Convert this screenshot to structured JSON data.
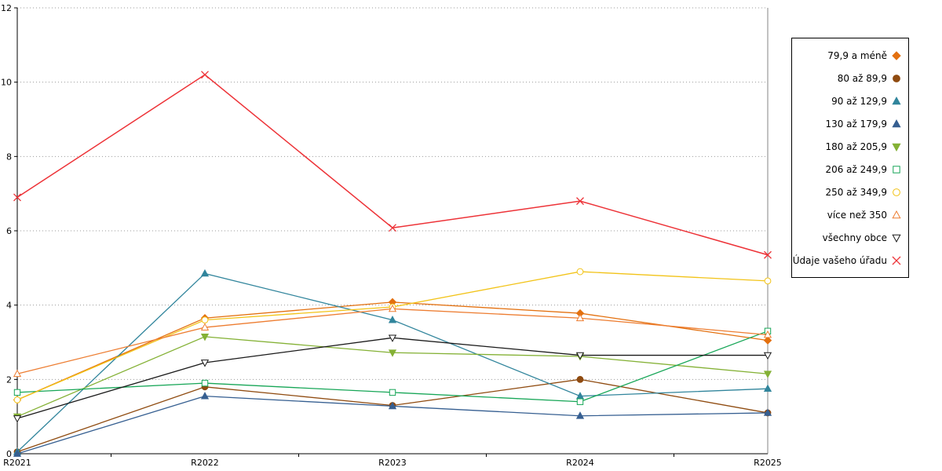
{
  "chart_data": {
    "type": "line",
    "x": [
      "R2021",
      "R2022",
      "R2023",
      "R2024",
      "R2025"
    ],
    "ylim": [
      0,
      12
    ],
    "ytick_step": 2,
    "yticks": [
      0,
      2,
      4,
      6,
      8,
      10,
      12
    ],
    "grid": "horizontal-dotted",
    "legend_position": "top-right",
    "title": "",
    "xlabel": "",
    "ylabel": "",
    "series": [
      {
        "name": "79,9 a méně",
        "marker": "diamond",
        "filled": true,
        "color": "#E3700F",
        "values": [
          1.45,
          3.65,
          4.08,
          3.78,
          3.05
        ]
      },
      {
        "name": "80 až 89,9",
        "marker": "circle",
        "filled": true,
        "color": "#8F4B10",
        "values": [
          0.05,
          1.8,
          1.3,
          2.0,
          1.1
        ]
      },
      {
        "name": "90 až 129,9",
        "marker": "triangle-up",
        "filled": true,
        "color": "#31859C",
        "values": [
          0.05,
          4.85,
          3.6,
          1.55,
          1.75
        ]
      },
      {
        "name": "130 až 179,9",
        "marker": "triangle-up",
        "filled": true,
        "color": "#365F91",
        "values": [
          0.0,
          1.55,
          1.28,
          1.02,
          1.1
        ]
      },
      {
        "name": "180 až 205,9",
        "marker": "triangle-down",
        "filled": true,
        "color": "#84B135",
        "values": [
          1.0,
          3.15,
          2.72,
          2.62,
          2.15
        ]
      },
      {
        "name": "206 až 249,9",
        "marker": "square",
        "filled": false,
        "color": "#17A657",
        "values": [
          1.65,
          1.9,
          1.65,
          1.4,
          3.3
        ]
      },
      {
        "name": "250 až 349,9",
        "marker": "circle",
        "filled": false,
        "color": "#F2C318",
        "values": [
          1.45,
          3.6,
          3.95,
          4.9,
          4.65
        ]
      },
      {
        "name": "více než 350",
        "marker": "triangle-up",
        "filled": false,
        "color": "#ED7D31",
        "values": [
          2.15,
          3.4,
          3.9,
          3.65,
          3.2
        ]
      },
      {
        "name": "všechny obce",
        "marker": "triangle-down",
        "filled": false,
        "color": "#1A1A1A",
        "values": [
          0.95,
          2.45,
          3.12,
          2.65,
          2.65
        ]
      },
      {
        "name": "Údaje vašeho úřadu",
        "marker": "x",
        "filled": false,
        "color": "#ED3237",
        "values": [
          6.9,
          10.2,
          6.08,
          6.8,
          5.35
        ]
      }
    ],
    "axis_color": "#000000",
    "grid_color": "#999999",
    "right_border_color": "#666666"
  }
}
